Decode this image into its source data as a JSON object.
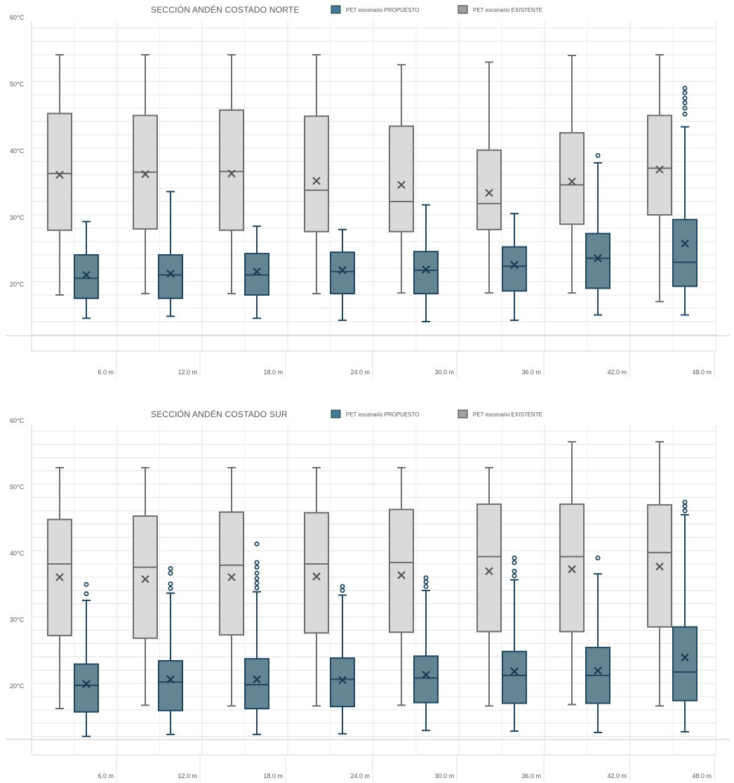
{
  "chart_data": [
    {
      "type": "box",
      "title": "SECCIÓN ANDÉN COSTADO NORTE",
      "ylim": [
        13,
        61
      ],
      "ytick_labels": [
        "60°C",
        "50°C",
        "40°C",
        "30°C",
        "20°C"
      ],
      "yticks": [
        60,
        50,
        40,
        30,
        20
      ],
      "xtick_labels": [
        "6.0 m",
        "12.0 m",
        "18.0 m",
        "24.0 m",
        "30.0 m",
        "36.0 m",
        "42.0 m",
        "48.0 m"
      ],
      "legend": {
        "placement": "top-right"
      },
      "series": [
        {
          "name": "PET escenario PROPUESTO",
          "color": "#3e6378",
          "boxes": [
            {
              "min": 16.5,
              "q1": 19.5,
              "median": 22.5,
              "q3": 26.0,
              "max": 31.0,
              "mean": 23.0,
              "outliers": []
            },
            {
              "min": 16.8,
              "q1": 19.5,
              "median": 23.0,
              "q3": 26.0,
              "max": 35.5,
              "mean": 23.2,
              "outliers": []
            },
            {
              "min": 16.5,
              "q1": 20.0,
              "median": 23.0,
              "q3": 26.2,
              "max": 30.3,
              "mean": 23.5,
              "outliers": []
            },
            {
              "min": 16.2,
              "q1": 20.2,
              "median": 23.5,
              "q3": 26.4,
              "max": 29.8,
              "mean": 23.7,
              "outliers": []
            },
            {
              "min": 16.0,
              "q1": 20.2,
              "median": 23.7,
              "q3": 26.5,
              "max": 33.5,
              "mean": 23.8,
              "outliers": []
            },
            {
              "min": 16.2,
              "q1": 20.6,
              "median": 24.3,
              "q3": 27.2,
              "max": 32.2,
              "mean": 24.5,
              "outliers": []
            },
            {
              "min": 17.0,
              "q1": 21.0,
              "median": 25.5,
              "q3": 29.2,
              "max": 39.8,
              "mean": 25.5,
              "outliers": [
                40.9
              ]
            },
            {
              "min": 17.0,
              "q1": 21.3,
              "median": 24.9,
              "q3": 31.3,
              "max": 45.2,
              "mean": 27.7,
              "outliers": [
                47.1,
                48.0,
                48.8,
                49.5,
                50.3,
                51.0
              ]
            }
          ]
        },
        {
          "name": "PET escenario EXISTENTE",
          "color": "#999999",
          "boxes": [
            {
              "min": 20.0,
              "q1": 29.7,
              "median": 38.2,
              "q3": 47.2,
              "max": 56.0,
              "mean": 38.0,
              "outliers": []
            },
            {
              "min": 20.2,
              "q1": 29.9,
              "median": 38.4,
              "q3": 46.9,
              "max": 56.0,
              "mean": 38.1,
              "outliers": []
            },
            {
              "min": 20.2,
              "q1": 29.7,
              "median": 38.5,
              "q3": 47.7,
              "max": 56.0,
              "mean": 38.2,
              "outliers": []
            },
            {
              "min": 20.2,
              "q1": 29.5,
              "median": 35.7,
              "q3": 46.8,
              "max": 56.0,
              "mean": 37.1,
              "outliers": []
            },
            {
              "min": 20.3,
              "q1": 29.5,
              "median": 34.0,
              "q3": 45.3,
              "max": 54.5,
              "mean": 36.5,
              "outliers": []
            },
            {
              "min": 20.3,
              "q1": 29.8,
              "median": 33.7,
              "q3": 41.7,
              "max": 54.9,
              "mean": 35.3,
              "outliers": []
            },
            {
              "min": 20.3,
              "q1": 30.6,
              "median": 36.5,
              "q3": 44.3,
              "max": 55.9,
              "mean": 37.0,
              "outliers": []
            },
            {
              "min": 19.0,
              "q1": 32.0,
              "median": 39.0,
              "q3": 46.9,
              "max": 56.0,
              "mean": 38.8,
              "outliers": []
            }
          ]
        }
      ]
    },
    {
      "type": "box",
      "title": "SECCIÓN ANDÉN COSTADO SUR",
      "ylim": [
        13,
        61
      ],
      "ytick_labels": [
        "60°C",
        "50°C",
        "40°C",
        "30°C",
        "20°C"
      ],
      "yticks": [
        60,
        50,
        40,
        30,
        20
      ],
      "xtick_labels": [
        "6.0 m",
        "12.0 m",
        "18.0 m",
        "24.0 m",
        "30.0 m",
        "36.0 m",
        "42.0 m",
        "48.0 m"
      ],
      "legend": {
        "placement": "top-right"
      },
      "series": [
        {
          "name": "PET escenario PROPUESTO",
          "color": "#3e6378",
          "boxes": [
            {
              "min": 14.0,
              "q1": 17.7,
              "median": 21.7,
              "q3": 24.9,
              "max": 34.5,
              "mean": 21.9,
              "outliers": [
                35.5,
                36.9
              ]
            },
            {
              "min": 14.3,
              "q1": 17.9,
              "median": 22.2,
              "q3": 25.4,
              "max": 35.6,
              "mean": 22.6,
              "outliers": [
                36.3,
                37.0,
                38.6,
                39.3
              ]
            },
            {
              "min": 14.3,
              "q1": 18.2,
              "median": 21.8,
              "q3": 25.7,
              "max": 35.8,
              "mean": 22.6,
              "outliers": [
                36.4,
                37.1,
                37.8,
                38.6,
                39.5,
                40.2,
                43.0
              ]
            },
            {
              "min": 14.4,
              "q1": 18.5,
              "median": 22.6,
              "q3": 25.8,
              "max": 35.3,
              "mean": 22.5,
              "outliers": [
                36.0,
                36.6
              ]
            },
            {
              "min": 14.9,
              "q1": 19.1,
              "median": 22.8,
              "q3": 26.1,
              "max": 36.0,
              "mean": 23.3,
              "outliers": [
                36.6,
                37.3,
                37.9
              ]
            },
            {
              "min": 14.8,
              "q1": 19.0,
              "median": 23.2,
              "q3": 26.8,
              "max": 37.6,
              "mean": 23.8,
              "outliers": [
                38.2,
                38.9,
                40.2,
                40.9
              ]
            },
            {
              "min": 14.6,
              "q1": 19.0,
              "median": 23.2,
              "q3": 27.4,
              "max": 38.5,
              "mean": 23.9,
              "outliers": [
                40.9
              ]
            },
            {
              "min": 14.7,
              "q1": 19.4,
              "median": 23.7,
              "q3": 30.5,
              "max": 47.4,
              "mean": 25.9,
              "outliers": [
                48.0,
                48.7,
                49.3
              ]
            }
          ]
        },
        {
          "name": "PET escenario EXISTENTE",
          "color": "#999999",
          "boxes": [
            {
              "min": 18.2,
              "q1": 29.2,
              "median": 40.0,
              "q3": 46.7,
              "max": 54.5,
              "mean": 38.0,
              "outliers": []
            },
            {
              "min": 18.7,
              "q1": 28.8,
              "median": 39.5,
              "q3": 47.2,
              "max": 54.5,
              "mean": 37.7,
              "outliers": []
            },
            {
              "min": 18.6,
              "q1": 29.3,
              "median": 39.8,
              "q3": 47.8,
              "max": 54.5,
              "mean": 38.0,
              "outliers": []
            },
            {
              "min": 18.6,
              "q1": 29.6,
              "median": 40.0,
              "q3": 47.7,
              "max": 54.5,
              "mean": 38.1,
              "outliers": []
            },
            {
              "min": 18.7,
              "q1": 29.7,
              "median": 40.2,
              "q3": 48.2,
              "max": 54.5,
              "mean": 38.3,
              "outliers": []
            },
            {
              "min": 18.6,
              "q1": 29.8,
              "median": 41.1,
              "q3": 49.0,
              "max": 54.5,
              "mean": 38.9,
              "outliers": []
            },
            {
              "min": 18.8,
              "q1": 29.8,
              "median": 41.1,
              "q3": 49.0,
              "max": 58.4,
              "mean": 39.2,
              "outliers": []
            },
            {
              "min": 18.6,
              "q1": 30.5,
              "median": 41.7,
              "q3": 48.9,
              "max": 58.4,
              "mean": 39.6,
              "outliers": []
            }
          ]
        }
      ]
    }
  ]
}
